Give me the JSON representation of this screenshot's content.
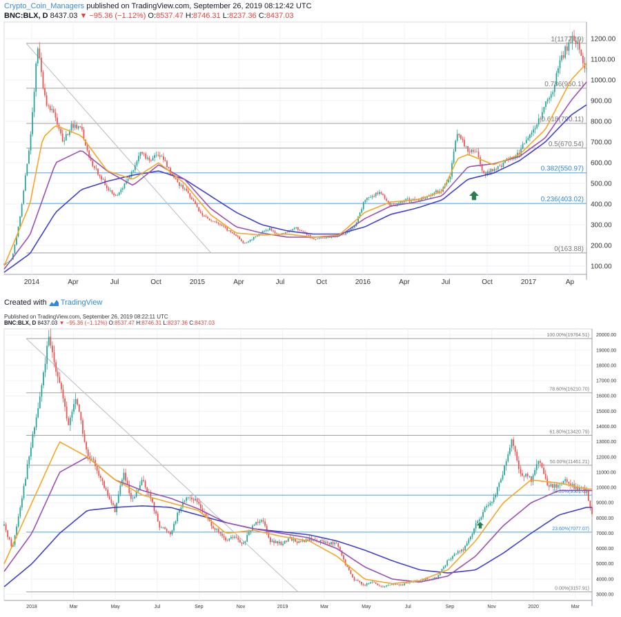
{
  "header1": {
    "user": "Crypto_Coin_Managers",
    "published": " published on TradingView.com, September 26, 2019 08:12:42 UTC",
    "symbol": "BNC:BLX, D",
    "last": "8437.03",
    "change": "−95.36 (−1.12%)",
    "o_label": "O:",
    "o": "8537.47",
    "h_label": "H:",
    "h": "8746.31",
    "l_label": "L:",
    "l": "8237.36",
    "c_label": "C:",
    "c": "8437.03"
  },
  "credit": {
    "prefix": "Created with",
    "brand": "TradingView"
  },
  "header2": {
    "published": "Published on TradingView.com, September 26, 2019 08:22:11 UTC",
    "symbol": "BNC:BLX, D",
    "last": "8437.03",
    "change": "−95.36 (−1.12%)",
    "o_label": "O:",
    "o": "8537.47",
    "h_label": "H:",
    "h": "8746.31",
    "l_label": "L:",
    "l": "8237.36",
    "c_label": "C:",
    "c": "8437.03"
  },
  "colors": {
    "up": "#26a69a",
    "down": "#ef5350",
    "ma_fast": "#f5a623",
    "ma_mid": "#9c4fb3",
    "ma_slow": "#3f3fd0",
    "fib_gray": "#9e9e9e",
    "fib_blue": "#4aa3df",
    "arrow": "#2e7d4f"
  },
  "chart_data": [
    {
      "type": "candlestick",
      "title": "",
      "x_ticks": [
        "2014",
        "Apr",
        "Jul",
        "Oct",
        "2015",
        "Apr",
        "Jul",
        "Oct",
        "2016",
        "Apr",
        "Jul",
        "Oct",
        "2017",
        "Ap"
      ],
      "y_ticks": [
        "1200.00",
        "1100.00",
        "1000.00",
        "900.00",
        "800.00",
        "700.00",
        "600.00",
        "500.00",
        "400.00",
        "300.00",
        "200.00",
        "100.00"
      ],
      "ylim": [
        60,
        1280
      ],
      "fib_levels": [
        {
          "label": "1(1177.19)",
          "value": 1177.19,
          "color": "gray"
        },
        {
          "label": "0.786(960.1)",
          "value": 960.1,
          "color": "gray"
        },
        {
          "label": "0.618(790.11)",
          "value": 790.11,
          "color": "gray"
        },
        {
          "label": "0.5(670.54)",
          "value": 670.54,
          "color": "gray"
        },
        {
          "label": "0.382(550.97)",
          "value": 550.97,
          "color": "blue"
        },
        {
          "label": "0.236(403.02)",
          "value": 403.02,
          "color": "blue"
        },
        {
          "label": "0(163.88)",
          "value": 163.88,
          "color": "gray"
        }
      ],
      "price_path": [
        [
          0,
          110
        ],
        [
          0.3,
          135
        ],
        [
          0.6,
          320
        ],
        [
          1,
          700
        ],
        [
          1.3,
          1160
        ],
        [
          1.6,
          900
        ],
        [
          2,
          820
        ],
        [
          2.3,
          700
        ],
        [
          2.6,
          780
        ],
        [
          3,
          760
        ],
        [
          3.3,
          620
        ],
        [
          3.6,
          560
        ],
        [
          4,
          480
        ],
        [
          4.3,
          430
        ],
        [
          4.7,
          500
        ],
        [
          5,
          560
        ],
        [
          5.3,
          660
        ],
        [
          5.6,
          610
        ],
        [
          6,
          640
        ],
        [
          6.3,
          590
        ],
        [
          6.6,
          520
        ],
        [
          7,
          470
        ],
        [
          7.3,
          420
        ],
        [
          7.6,
          360
        ],
        [
          8,
          320
        ],
        [
          8.3,
          310
        ],
        [
          8.6,
          280
        ],
        [
          9,
          250
        ],
        [
          9.3,
          210
        ],
        [
          9.6,
          230
        ],
        [
          10,
          265
        ],
        [
          10.3,
          280
        ],
        [
          10.6,
          255
        ],
        [
          11,
          265
        ],
        [
          11.3,
          285
        ],
        [
          11.6,
          265
        ],
        [
          12,
          230
        ],
        [
          12.3,
          235
        ],
        [
          12.6,
          240
        ],
        [
          13,
          250
        ],
        [
          13.3,
          260
        ],
        [
          13.6,
          290
        ],
        [
          14,
          420
        ],
        [
          14.3,
          440
        ],
        [
          14.6,
          460
        ],
        [
          15,
          390
        ],
        [
          15.3,
          400
        ],
        [
          15.6,
          420
        ],
        [
          16,
          420
        ],
        [
          16.3,
          430
        ],
        [
          16.6,
          450
        ],
        [
          17,
          470
        ],
        [
          17.3,
          530
        ],
        [
          17.6,
          760
        ],
        [
          18,
          650
        ],
        [
          18.3,
          660
        ],
        [
          18.6,
          540
        ],
        [
          19,
          570
        ],
        [
          19.3,
          590
        ],
        [
          19.6,
          620
        ],
        [
          20,
          650
        ],
        [
          20.3,
          720
        ],
        [
          20.6,
          760
        ],
        [
          21,
          880
        ],
        [
          21.3,
          950
        ],
        [
          21.6,
          1100
        ],
        [
          22,
          1200
        ],
        [
          22.3,
          1160
        ],
        [
          22.6,
          1040
        ]
      ],
      "x_span": 22.6,
      "ma_fast": [
        [
          0,
          100
        ],
        [
          1,
          400
        ],
        [
          1.5,
          720
        ],
        [
          2,
          780
        ],
        [
          3,
          730
        ],
        [
          4,
          560
        ],
        [
          5,
          520
        ],
        [
          6,
          600
        ],
        [
          7,
          500
        ],
        [
          8,
          350
        ],
        [
          9,
          260
        ],
        [
          10,
          250
        ],
        [
          11,
          255
        ],
        [
          12,
          240
        ],
        [
          13,
          250
        ],
        [
          14,
          360
        ],
        [
          15,
          410
        ],
        [
          16,
          420
        ],
        [
          17,
          460
        ],
        [
          17.6,
          620
        ],
        [
          18,
          640
        ],
        [
          19,
          590
        ],
        [
          20,
          640
        ],
        [
          21,
          760
        ],
        [
          22,
          1000
        ],
        [
          22.6,
          1080
        ]
      ],
      "ma_mid": [
        [
          0,
          85
        ],
        [
          1,
          250
        ],
        [
          2,
          600
        ],
        [
          3,
          660
        ],
        [
          4,
          560
        ],
        [
          5,
          490
        ],
        [
          6,
          590
        ],
        [
          7,
          520
        ],
        [
          8,
          380
        ],
        [
          9,
          290
        ],
        [
          10,
          260
        ],
        [
          11,
          240
        ],
        [
          12,
          240
        ],
        [
          13,
          245
        ],
        [
          14,
          330
        ],
        [
          15,
          390
        ],
        [
          16,
          410
        ],
        [
          17,
          440
        ],
        [
          18,
          580
        ],
        [
          19,
          595
        ],
        [
          20,
          630
        ],
        [
          21,
          720
        ],
        [
          22,
          900
        ],
        [
          22.6,
          990
        ]
      ],
      "ma_slow": [
        [
          0,
          70
        ],
        [
          1,
          160
        ],
        [
          2,
          360
        ],
        [
          3,
          470
        ],
        [
          4,
          510
        ],
        [
          5,
          540
        ],
        [
          6,
          560
        ],
        [
          7,
          520
        ],
        [
          8,
          440
        ],
        [
          9,
          360
        ],
        [
          10,
          300
        ],
        [
          11,
          270
        ],
        [
          12,
          255
        ],
        [
          13,
          255
        ],
        [
          14,
          290
        ],
        [
          15,
          350
        ],
        [
          16,
          380
        ],
        [
          17,
          420
        ],
        [
          18,
          520
        ],
        [
          19,
          550
        ],
        [
          20,
          610
        ],
        [
          21,
          700
        ],
        [
          22,
          830
        ],
        [
          22.6,
          880
        ]
      ],
      "arrow_marker": "up"
    },
    {
      "type": "candlestick",
      "title": "",
      "x_ticks": [
        "2018",
        "Mar",
        "May",
        "Jul",
        "Sep",
        "Nov",
        "2019",
        "Mar",
        "May",
        "Jul",
        "Sep",
        "Nov",
        "2020",
        "Mar"
      ],
      "y_ticks": [
        "20000.00",
        "19000.00",
        "18000.00",
        "17000.00",
        "16000.00",
        "15000.00",
        "14000.00",
        "13000.00",
        "12000.00",
        "11000.00",
        "10000.00",
        "9000.00",
        "8000.00",
        "7000.00",
        "6000.00",
        "5000.00",
        "4000.00",
        "3000.00"
      ],
      "ylim": [
        2600,
        20400
      ],
      "fib_levels": [
        {
          "label": "100.00%(19764.51)",
          "value": 19764.51,
          "color": "gray"
        },
        {
          "label": "78.60%(16210.70)",
          "value": 16210.7,
          "color": "gray"
        },
        {
          "label": "61.80%(13420.79)",
          "value": 13420.79,
          "color": "gray"
        },
        {
          "label": "50.00%(11461.21)",
          "value": 11461.21,
          "color": "gray"
        },
        {
          "label": "38.20%(9501.63)",
          "value": 9501.63,
          "color": "blue"
        },
        {
          "label": "23.60%(7077.07)",
          "value": 7077.07,
          "color": "blue"
        },
        {
          "label": "0.00%(3157.91)",
          "value": 3157.91,
          "color": "gray"
        }
      ],
      "price_path": [
        [
          0,
          7500
        ],
        [
          0.3,
          6000
        ],
        [
          0.6,
          9000
        ],
        [
          1,
          13000
        ],
        [
          1.3,
          16000
        ],
        [
          1.6,
          19700
        ],
        [
          2,
          17000
        ],
        [
          2.3,
          14000
        ],
        [
          2.6,
          16000
        ],
        [
          3,
          12000
        ],
        [
          3.3,
          11500
        ],
        [
          3.6,
          10000
        ],
        [
          4,
          8500
        ],
        [
          4.3,
          11000
        ],
        [
          4.6,
          9000
        ],
        [
          5,
          10500
        ],
        [
          5.3,
          9200
        ],
        [
          5.6,
          7500
        ],
        [
          6,
          7000
        ],
        [
          6.3,
          8500
        ],
        [
          6.6,
          9500
        ],
        [
          7,
          9000
        ],
        [
          7.3,
          8000
        ],
        [
          7.6,
          7300
        ],
        [
          8,
          6500
        ],
        [
          8.3,
          6800
        ],
        [
          8.6,
          6200
        ],
        [
          9,
          7600
        ],
        [
          9.3,
          8000
        ],
        [
          9.6,
          6500
        ],
        [
          10,
          6300
        ],
        [
          10.3,
          6700
        ],
        [
          10.6,
          6400
        ],
        [
          11,
          6600
        ],
        [
          11.3,
          6500
        ],
        [
          11.6,
          6400
        ],
        [
          12,
          6300
        ],
        [
          12.3,
          5000
        ],
        [
          12.6,
          4000
        ],
        [
          13,
          3600
        ],
        [
          13.3,
          3800
        ],
        [
          13.6,
          3500
        ],
        [
          14,
          3700
        ],
        [
          14.3,
          3600
        ],
        [
          14.6,
          3800
        ],
        [
          15,
          3900
        ],
        [
          15.3,
          4000
        ],
        [
          15.6,
          4100
        ],
        [
          16,
          5200
        ],
        [
          16.3,
          5700
        ],
        [
          16.6,
          6000
        ],
        [
          17,
          7500
        ],
        [
          17.3,
          8500
        ],
        [
          17.6,
          9000
        ],
        [
          18,
          11000
        ],
        [
          18.3,
          13000
        ],
        [
          18.6,
          11000
        ],
        [
          19,
          10500
        ],
        [
          19.3,
          11800
        ],
        [
          19.6,
          10000
        ],
        [
          20,
          10200
        ],
        [
          20.3,
          10500
        ],
        [
          20.6,
          10000
        ],
        [
          21,
          9800
        ],
        [
          21.2,
          8300
        ]
      ],
      "x_span": 21.2,
      "ma_fast": [
        [
          0,
          5000
        ],
        [
          1,
          9000
        ],
        [
          2,
          13000
        ],
        [
          3,
          12000
        ],
        [
          4,
          10500
        ],
        [
          5,
          9500
        ],
        [
          6,
          9000
        ],
        [
          7,
          8500
        ],
        [
          8,
          7000
        ],
        [
          9,
          7200
        ],
        [
          10,
          6800
        ],
        [
          11,
          6500
        ],
        [
          12,
          5500
        ],
        [
          13,
          4000
        ],
        [
          14,
          3700
        ],
        [
          15,
          3900
        ],
        [
          16,
          4600
        ],
        [
          17,
          6500
        ],
        [
          18,
          9000
        ],
        [
          19,
          10500
        ],
        [
          20,
          10300
        ],
        [
          21,
          9900
        ]
      ],
      "ma_mid": [
        [
          0,
          4500
        ],
        [
          1,
          7000
        ],
        [
          2,
          11000
        ],
        [
          3,
          12000
        ],
        [
          4,
          10500
        ],
        [
          5,
          9800
        ],
        [
          6,
          9300
        ],
        [
          7,
          8600
        ],
        [
          8,
          7700
        ],
        [
          9,
          7300
        ],
        [
          10,
          7000
        ],
        [
          11,
          6700
        ],
        [
          12,
          6000
        ],
        [
          13,
          4800
        ],
        [
          14,
          4000
        ],
        [
          15,
          3800
        ],
        [
          16,
          4200
        ],
        [
          17,
          5500
        ],
        [
          18,
          7500
        ],
        [
          19,
          9000
        ],
        [
          20,
          9800
        ],
        [
          21,
          9800
        ]
      ],
      "ma_slow": [
        [
          0,
          3500
        ],
        [
          1,
          5000
        ],
        [
          2,
          7000
        ],
        [
          3,
          8500
        ],
        [
          4,
          8700
        ],
        [
          5,
          8800
        ],
        [
          6,
          8700
        ],
        [
          7,
          8200
        ],
        [
          8,
          7700
        ],
        [
          9,
          7300
        ],
        [
          10,
          7100
        ],
        [
          11,
          6900
        ],
        [
          12,
          6500
        ],
        [
          13,
          5900
        ],
        [
          14,
          5200
        ],
        [
          15,
          4600
        ],
        [
          16,
          4400
        ],
        [
          17,
          4600
        ],
        [
          18,
          5700
        ],
        [
          19,
          7000
        ],
        [
          20,
          8200
        ],
        [
          21,
          8700
        ]
      ],
      "arrow_marker": "up"
    }
  ]
}
